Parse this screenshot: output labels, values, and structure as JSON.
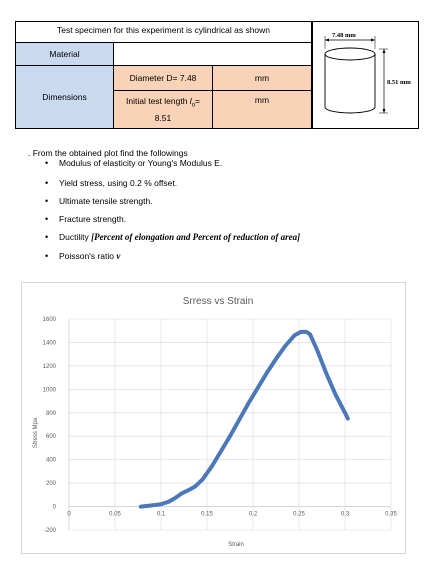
{
  "spec_table": {
    "title": "Test specimen for this experiment is cylindrical as shown",
    "material_label": "Material",
    "material_value": "",
    "dimensions_label": "Dimensions",
    "diameter_label": "Diameter D= 7.48",
    "diameter_unit": "mm",
    "length_label_prefix": "Initial test length ",
    "length_symbol": "l",
    "length_subscript": "o",
    "length_label_suffix": "=",
    "length_value": "8.51",
    "length_unit": "mm",
    "diagram_diameter": "7.48 mm",
    "diagram_length": "8.51 mm"
  },
  "instructions": {
    "intro": ". From the obtained plot find the followings",
    "items": [
      "Modulus of elasticity or Young's Modulus E.",
      "Yield stress, using 0.2 % offset.",
      "Ultimate tensile strength.",
      "Fracture strength."
    ],
    "ductility_prefix": "Ductility ",
    "ductility_emph": "[Percent of elongation and Percent of reduction of area]",
    "poisson_prefix": "Poisson's ratio ",
    "poisson_symbol": "ν"
  },
  "chart_data": {
    "type": "line",
    "title": "Srress vs Strain",
    "xlabel": "Strain",
    "ylabel": "Stress Mpa",
    "xlim": [
      0,
      0.35
    ],
    "ylim": [
      -200,
      1600
    ],
    "x_ticks": [
      "0",
      "0.05",
      "0.1",
      "0.15",
      "0.2",
      "0.25",
      "0.3",
      "0.35"
    ],
    "y_ticks": [
      "-200",
      "0",
      "200",
      "400",
      "600",
      "800",
      "1000",
      "1200",
      "1400",
      "1600"
    ],
    "grid": true,
    "series_color": "#4a78b9",
    "series": [
      {
        "x": [
          0.078,
          0.09,
          0.1,
          0.108,
          0.115,
          0.122,
          0.13,
          0.137,
          0.145,
          0.155,
          0.165,
          0.175,
          0.185,
          0.195,
          0.205,
          0.215,
          0.225,
          0.235,
          0.245,
          0.252,
          0.258,
          0.262,
          0.27,
          0.28,
          0.29,
          0.3,
          0.303
        ],
        "y": [
          0,
          10,
          20,
          40,
          70,
          110,
          140,
          170,
          230,
          340,
          470,
          600,
          740,
          880,
          1010,
          1140,
          1260,
          1370,
          1460,
          1490,
          1490,
          1470,
          1330,
          1130,
          950,
          800,
          750
        ]
      }
    ]
  }
}
